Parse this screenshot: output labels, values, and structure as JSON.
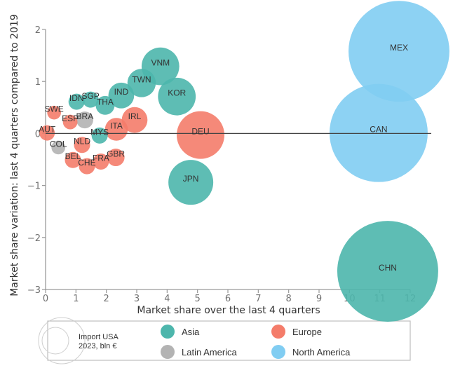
{
  "chart_data": {
    "type": "scatter",
    "subtype": "bubble",
    "xlabel": "Market share over the last 4 quarters",
    "ylabel": "Market share variation: last 4 quarters compared to 2019",
    "xlim": [
      0,
      12
    ],
    "ylim": [
      -3,
      2
    ],
    "x_ticks": [
      "0",
      "1",
      "2",
      "3",
      "4",
      "5",
      "6",
      "7",
      "8",
      "9",
      "10",
      "11",
      "12"
    ],
    "y_ticks": [
      "2",
      "1",
      "0",
      "−1",
      "−2",
      "−3"
    ],
    "y_tick_values": [
      2,
      1,
      0,
      -1,
      -2,
      -3
    ],
    "x_tick_values": [
      0,
      1,
      2,
      3,
      4,
      5,
      6,
      7,
      8,
      9,
      10,
      11,
      12
    ],
    "grid": false,
    "zero_line": true,
    "groups": [
      {
        "name": "Asia",
        "color": "#4db6ac"
      },
      {
        "name": "Europe",
        "color": "#f47c6a"
      },
      {
        "name": "Latin America",
        "color": "#b3b3b3"
      },
      {
        "name": "North America",
        "color": "#81cdf2"
      }
    ],
    "size_legend": {
      "line1": "Import USA",
      "line2": "2023, bln €"
    },
    "legend_position": "bottom",
    "points": [
      {
        "label": "MEX",
        "group": "North America",
        "x": 11.63,
        "y": 1.58,
        "size": 430
      },
      {
        "label": "CAN",
        "group": "North America",
        "x": 10.96,
        "y": 0.01,
        "size": 407
      },
      {
        "label": "CHN",
        "group": "Asia",
        "x": 11.26,
        "y": -2.65,
        "size": 430
      },
      {
        "label": "DEU",
        "group": "Europe",
        "x": 5.1,
        "y": -0.03,
        "size": 96
      },
      {
        "label": "JPN",
        "group": "Asia",
        "x": 4.78,
        "y": -0.94,
        "size": 85
      },
      {
        "label": "KOR",
        "group": "Asia",
        "x": 4.32,
        "y": 0.71,
        "size": 60
      },
      {
        "label": "VNM",
        "group": "Asia",
        "x": 3.78,
        "y": 1.29,
        "size": 60
      },
      {
        "label": "TWN",
        "group": "Asia",
        "x": 3.16,
        "y": 0.97,
        "size": 34
      },
      {
        "label": "IND",
        "group": "Asia",
        "x": 2.49,
        "y": 0.73,
        "size": 28
      },
      {
        "label": "IRL",
        "group": "Europe",
        "x": 2.93,
        "y": 0.26,
        "size": 28
      },
      {
        "label": "ITA",
        "group": "Europe",
        "x": 2.33,
        "y": 0.08,
        "size": 22
      },
      {
        "label": "THA",
        "group": "Asia",
        "x": 1.96,
        "y": 0.54,
        "size": 15
      },
      {
        "label": "SGP",
        "group": "Asia",
        "x": 1.48,
        "y": 0.65,
        "size": 11
      },
      {
        "label": "IDN",
        "group": "Asia",
        "x": 1.02,
        "y": 0.61,
        "size": 11
      },
      {
        "label": "MYS",
        "group": "Asia",
        "x": 1.78,
        "y": -0.04,
        "size": 11
      },
      {
        "label": "GBR",
        "group": "Europe",
        "x": 2.31,
        "y": -0.46,
        "size": 13
      },
      {
        "label": "FRA",
        "group": "Europe",
        "x": 1.82,
        "y": -0.54,
        "size": 11
      },
      {
        "label": "CHE",
        "group": "Europe",
        "x": 1.36,
        "y": -0.63,
        "size": 11
      },
      {
        "label": "BEL",
        "group": "Europe",
        "x": 0.9,
        "y": -0.51,
        "size": 11
      },
      {
        "label": "NLD",
        "group": "Europe",
        "x": 1.2,
        "y": -0.22,
        "size": 11
      },
      {
        "label": "ESP",
        "group": "Europe",
        "x": 0.81,
        "y": 0.22,
        "size": 9
      },
      {
        "label": "SWE",
        "group": "Europe",
        "x": 0.28,
        "y": 0.4,
        "size": 8
      },
      {
        "label": "AUT",
        "group": "Europe",
        "x": 0.05,
        "y": 0.01,
        "size": 10
      },
      {
        "label": "BRA",
        "group": "Latin America",
        "x": 1.29,
        "y": 0.26,
        "size": 12
      },
      {
        "label": "COL",
        "group": "Latin America",
        "x": 0.42,
        "y": -0.27,
        "size": 8
      }
    ]
  }
}
